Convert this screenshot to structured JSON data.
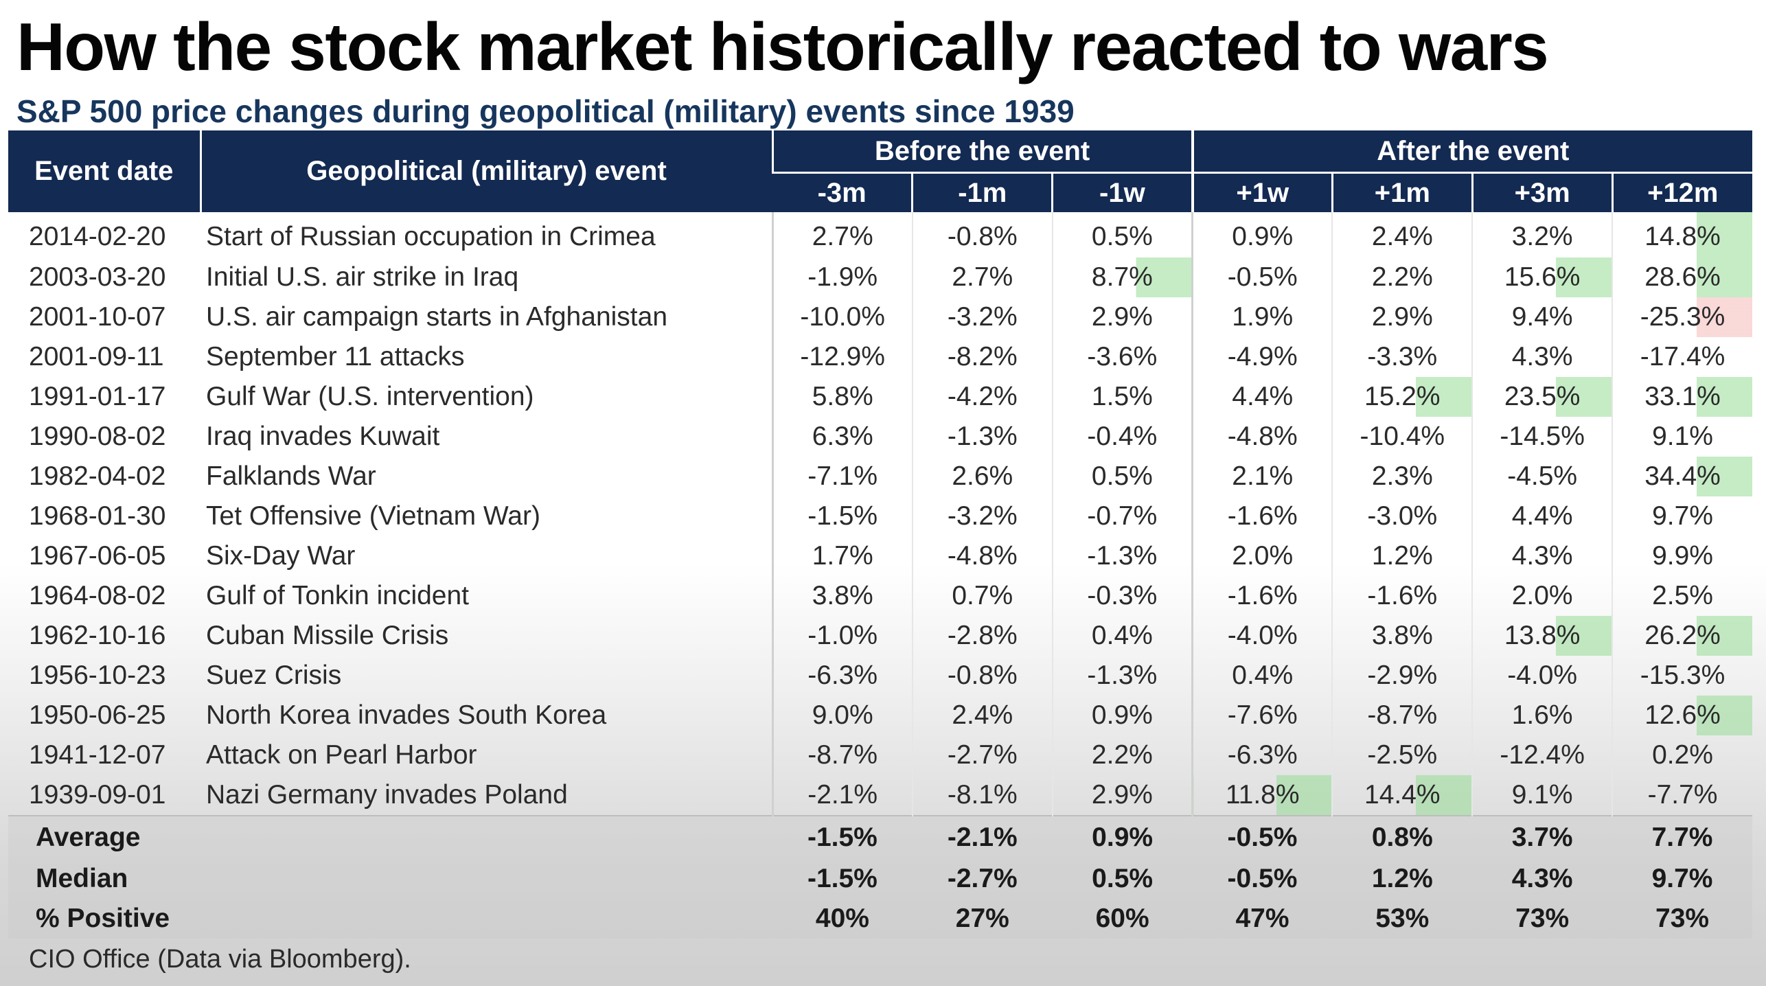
{
  "title": "How the stock market historically reacted to wars",
  "subtitle": "S&P 500 price changes during geopolitical (military) events since 1939",
  "table": {
    "headers": {
      "event_date": "Event date",
      "event": "Geopolitical (military) event",
      "before_group": "Before the event",
      "after_group": "After the event",
      "periods": [
        "-3m",
        "-1m",
        "-1w",
        "+1w",
        "+1m",
        "+3m",
        "+12m"
      ]
    },
    "rows": [
      {
        "date": "2014-02-20",
        "event": "Start of Russian occupation in Crimea",
        "values": [
          "2.7%",
          "-0.8%",
          "0.5%",
          "0.9%",
          "2.4%",
          "3.2%",
          "14.8%"
        ]
      },
      {
        "date": "2003-03-20",
        "event": "Initial U.S. air strike in Iraq",
        "values": [
          "-1.9%",
          "2.7%",
          "8.7%",
          "-0.5%",
          "2.2%",
          "15.6%",
          "28.6%"
        ]
      },
      {
        "date": "2001-10-07",
        "event": "U.S. air campaign starts in Afghanistan",
        "values": [
          "-10.0%",
          "-3.2%",
          "2.9%",
          "1.9%",
          "2.9%",
          "9.4%",
          "-25.3%"
        ]
      },
      {
        "date": "2001-09-11",
        "event": "September 11 attacks",
        "values": [
          "-12.9%",
          "-8.2%",
          "-3.6%",
          "-4.9%",
          "-3.3%",
          "4.3%",
          "-17.4%"
        ]
      },
      {
        "date": "1991-01-17",
        "event": "Gulf War (U.S. intervention)",
        "values": [
          "5.8%",
          "-4.2%",
          "1.5%",
          "4.4%",
          "15.2%",
          "23.5%",
          "33.1%"
        ]
      },
      {
        "date": "1990-08-02",
        "event": "Iraq invades Kuwait",
        "values": [
          "6.3%",
          "-1.3%",
          "-0.4%",
          "-4.8%",
          "-10.4%",
          "-14.5%",
          "9.1%"
        ]
      },
      {
        "date": "1982-04-02",
        "event": "Falklands War",
        "values": [
          "-7.1%",
          "2.6%",
          "0.5%",
          "2.1%",
          "2.3%",
          "-4.5%",
          "34.4%"
        ]
      },
      {
        "date": "1968-01-30",
        "event": "Tet Offensive (Vietnam War)",
        "values": [
          "-1.5%",
          "-3.2%",
          "-0.7%",
          "-1.6%",
          "-3.0%",
          "4.4%",
          "9.7%"
        ]
      },
      {
        "date": "1967-06-05",
        "event": "Six-Day War",
        "values": [
          "1.7%",
          "-4.8%",
          "-1.3%",
          "2.0%",
          "1.2%",
          "4.3%",
          "9.9%"
        ]
      },
      {
        "date": "1964-08-02",
        "event": "Gulf of Tonkin incident",
        "values": [
          "3.8%",
          "0.7%",
          "-0.3%",
          "-1.6%",
          "-1.6%",
          "2.0%",
          "2.5%"
        ]
      },
      {
        "date": "1962-10-16",
        "event": "Cuban Missile Crisis",
        "values": [
          "-1.0%",
          "-2.8%",
          "0.4%",
          "-4.0%",
          "3.8%",
          "13.8%",
          "26.2%"
        ]
      },
      {
        "date": "1956-10-23",
        "event": "Suez Crisis",
        "values": [
          "-6.3%",
          "-0.8%",
          "-1.3%",
          "0.4%",
          "-2.9%",
          "-4.0%",
          "-15.3%"
        ]
      },
      {
        "date": "1950-06-25",
        "event": "North Korea invades South Korea",
        "values": [
          "9.0%",
          "2.4%",
          "0.9%",
          "-7.6%",
          "-8.7%",
          "1.6%",
          "12.6%"
        ]
      },
      {
        "date": "1941-12-07",
        "event": "Attack on Pearl Harbor",
        "values": [
          "-8.7%",
          "-2.7%",
          "2.2%",
          "-6.3%",
          "-2.5%",
          "-12.4%",
          "0.2%"
        ]
      },
      {
        "date": "1939-09-01",
        "event": "Nazi Germany invades Poland",
        "values": [
          "-2.1%",
          "-8.1%",
          "2.9%",
          "11.8%",
          "14.4%",
          "9.1%",
          "-7.7%"
        ]
      }
    ],
    "summary": [
      {
        "label": "Average",
        "values": [
          "-1.5%",
          "-2.1%",
          "0.9%",
          "-0.5%",
          "0.8%",
          "3.7%",
          "7.7%"
        ]
      },
      {
        "label": "Median",
        "values": [
          "-1.5%",
          "-2.7%",
          "0.5%",
          "-0.5%",
          "1.2%",
          "4.3%",
          "9.7%"
        ]
      },
      {
        "label": "% Positive",
        "values": [
          "40%",
          "27%",
          "60%",
          "47%",
          "53%",
          "73%",
          "73%"
        ]
      }
    ]
  },
  "source": "CIO Office (Data via Bloomberg).",
  "colors": {
    "header_bg": "#132a52",
    "subtitle": "#17365d",
    "positive_highlight": "#96dc96",
    "negative_highlight": "#f5aaaa"
  }
}
